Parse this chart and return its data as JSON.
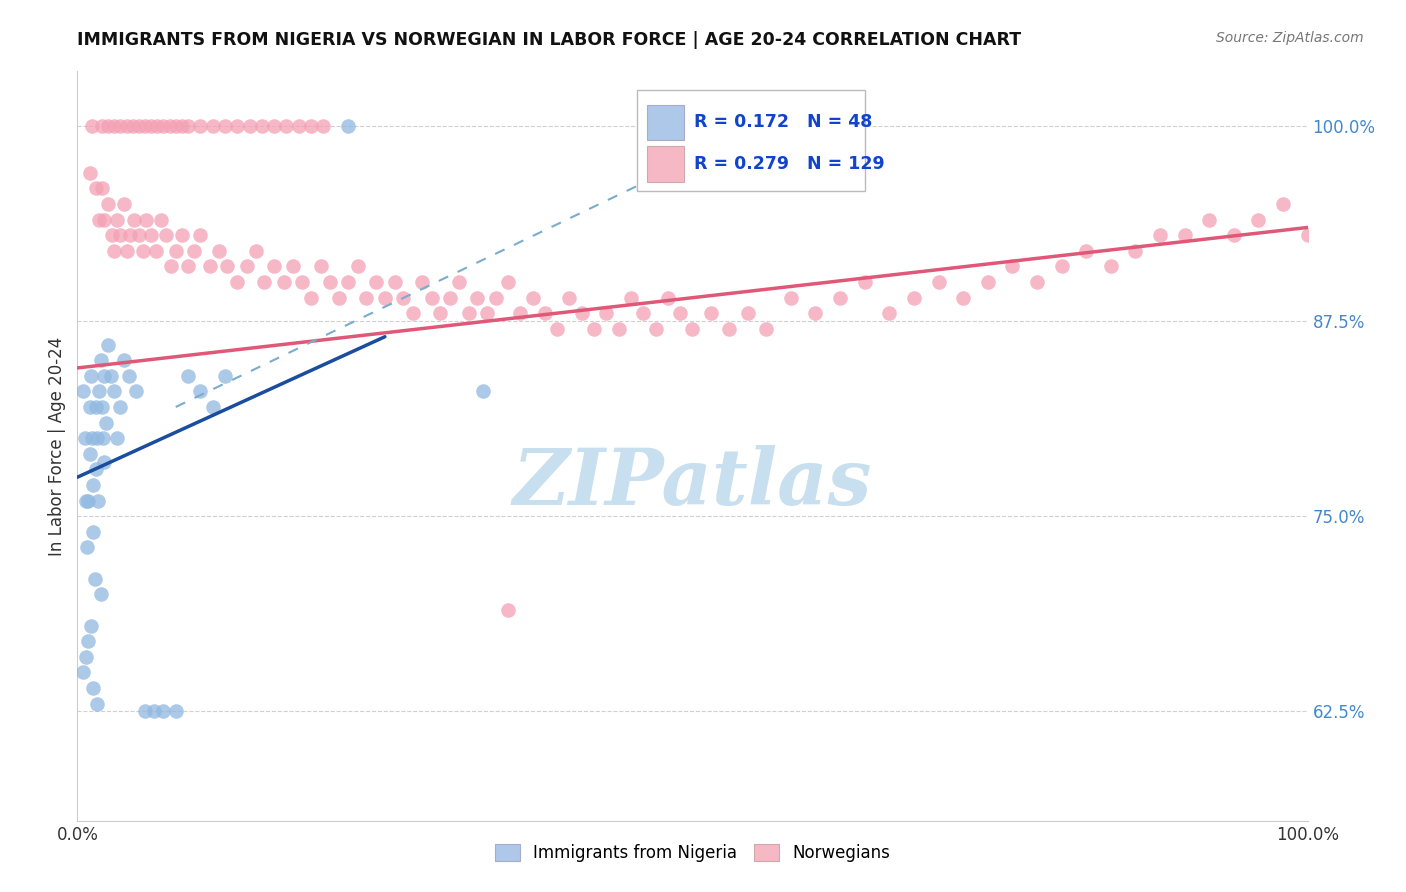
{
  "title": "IMMIGRANTS FROM NIGERIA VS NORWEGIAN IN LABOR FORCE | AGE 20-24 CORRELATION CHART",
  "source": "Source: ZipAtlas.com",
  "ylabel": "In Labor Force | Age 20-24",
  "xlim": [
    0.0,
    1.0
  ],
  "ylim": [
    0.555,
    1.035
  ],
  "r_nigeria": 0.172,
  "n_nigeria": 48,
  "r_norwegian": 0.279,
  "n_norwegian": 129,
  "nigeria_color": "#90b8e0",
  "norwegian_color": "#f4a0b5",
  "nigeria_line_color": "#1a4d9e",
  "norwegian_line_color": "#e05878",
  "nigeria_line_style": "solid",
  "norwegian_line_style": "dashed",
  "background_color": "#ffffff",
  "grid_color": "#d0d0d0",
  "watermark_color": "#c8dff0",
  "legend_box_nigeria": "#aec8ea",
  "legend_box_norwegian": "#f7b8c5",
  "nigeria_x": [
    0.005,
    0.006,
    0.007,
    0.008,
    0.009,
    0.01,
    0.01,
    0.011,
    0.012,
    0.013,
    0.013,
    0.014,
    0.015,
    0.015,
    0.016,
    0.017,
    0.018,
    0.019,
    0.02,
    0.021,
    0.022,
    0.023,
    0.025,
    0.027,
    0.03,
    0.032,
    0.035,
    0.038,
    0.042,
    0.048,
    0.055,
    0.062,
    0.07,
    0.08,
    0.09,
    0.1,
    0.11,
    0.12,
    0.005,
    0.007,
    0.009,
    0.011,
    0.013,
    0.016,
    0.019,
    0.022,
    0.22,
    0.33
  ],
  "nigeria_y": [
    0.83,
    0.8,
    0.76,
    0.73,
    0.76,
    0.82,
    0.79,
    0.84,
    0.8,
    0.77,
    0.74,
    0.71,
    0.78,
    0.82,
    0.8,
    0.76,
    0.83,
    0.85,
    0.82,
    0.8,
    0.84,
    0.81,
    0.86,
    0.84,
    0.83,
    0.8,
    0.82,
    0.85,
    0.84,
    0.83,
    0.625,
    0.625,
    0.625,
    0.625,
    0.84,
    0.83,
    0.82,
    0.84,
    0.65,
    0.66,
    0.67,
    0.68,
    0.64,
    0.63,
    0.7,
    0.785,
    1.0,
    0.83
  ],
  "norwegian_x": [
    0.01,
    0.015,
    0.018,
    0.02,
    0.022,
    0.025,
    0.028,
    0.03,
    0.032,
    0.035,
    0.038,
    0.04,
    0.043,
    0.046,
    0.05,
    0.053,
    0.056,
    0.06,
    0.064,
    0.068,
    0.072,
    0.076,
    0.08,
    0.085,
    0.09,
    0.095,
    0.1,
    0.108,
    0.115,
    0.122,
    0.13,
    0.138,
    0.145,
    0.152,
    0.16,
    0.168,
    0.175,
    0.183,
    0.19,
    0.198,
    0.205,
    0.213,
    0.22,
    0.228,
    0.235,
    0.243,
    0.25,
    0.258,
    0.265,
    0.273,
    0.28,
    0.288,
    0.295,
    0.303,
    0.31,
    0.318,
    0.325,
    0.333,
    0.34,
    0.35,
    0.36,
    0.37,
    0.38,
    0.39,
    0.4,
    0.41,
    0.42,
    0.43,
    0.44,
    0.45,
    0.46,
    0.47,
    0.48,
    0.49,
    0.5,
    0.515,
    0.53,
    0.545,
    0.56,
    0.58,
    0.6,
    0.62,
    0.64,
    0.66,
    0.68,
    0.7,
    0.72,
    0.74,
    0.76,
    0.78,
    0.8,
    0.82,
    0.84,
    0.86,
    0.88,
    0.9,
    0.92,
    0.94,
    0.96,
    0.98,
    1.0,
    0.012,
    0.02,
    0.025,
    0.03,
    0.035,
    0.04,
    0.045,
    0.05,
    0.055,
    0.06,
    0.065,
    0.07,
    0.075,
    0.08,
    0.085,
    0.09,
    0.1,
    0.11,
    0.12,
    0.13,
    0.14,
    0.15,
    0.16,
    0.17,
    0.18,
    0.19,
    0.2,
    0.35
  ],
  "norwegian_y": [
    0.97,
    0.96,
    0.94,
    0.96,
    0.94,
    0.95,
    0.93,
    0.92,
    0.94,
    0.93,
    0.95,
    0.92,
    0.93,
    0.94,
    0.93,
    0.92,
    0.94,
    0.93,
    0.92,
    0.94,
    0.93,
    0.91,
    0.92,
    0.93,
    0.91,
    0.92,
    0.93,
    0.91,
    0.92,
    0.91,
    0.9,
    0.91,
    0.92,
    0.9,
    0.91,
    0.9,
    0.91,
    0.9,
    0.89,
    0.91,
    0.9,
    0.89,
    0.9,
    0.91,
    0.89,
    0.9,
    0.89,
    0.9,
    0.89,
    0.88,
    0.9,
    0.89,
    0.88,
    0.89,
    0.9,
    0.88,
    0.89,
    0.88,
    0.89,
    0.9,
    0.88,
    0.89,
    0.88,
    0.87,
    0.89,
    0.88,
    0.87,
    0.88,
    0.87,
    0.89,
    0.88,
    0.87,
    0.89,
    0.88,
    0.87,
    0.88,
    0.87,
    0.88,
    0.87,
    0.89,
    0.88,
    0.89,
    0.9,
    0.88,
    0.89,
    0.9,
    0.89,
    0.9,
    0.91,
    0.9,
    0.91,
    0.92,
    0.91,
    0.92,
    0.93,
    0.93,
    0.94,
    0.93,
    0.94,
    0.95,
    0.93,
    1.0,
    1.0,
    1.0,
    1.0,
    1.0,
    1.0,
    1.0,
    1.0,
    1.0,
    1.0,
    1.0,
    1.0,
    1.0,
    1.0,
    1.0,
    1.0,
    1.0,
    1.0,
    1.0,
    1.0,
    1.0,
    1.0,
    1.0,
    1.0,
    1.0,
    1.0,
    1.0,
    0.69
  ]
}
